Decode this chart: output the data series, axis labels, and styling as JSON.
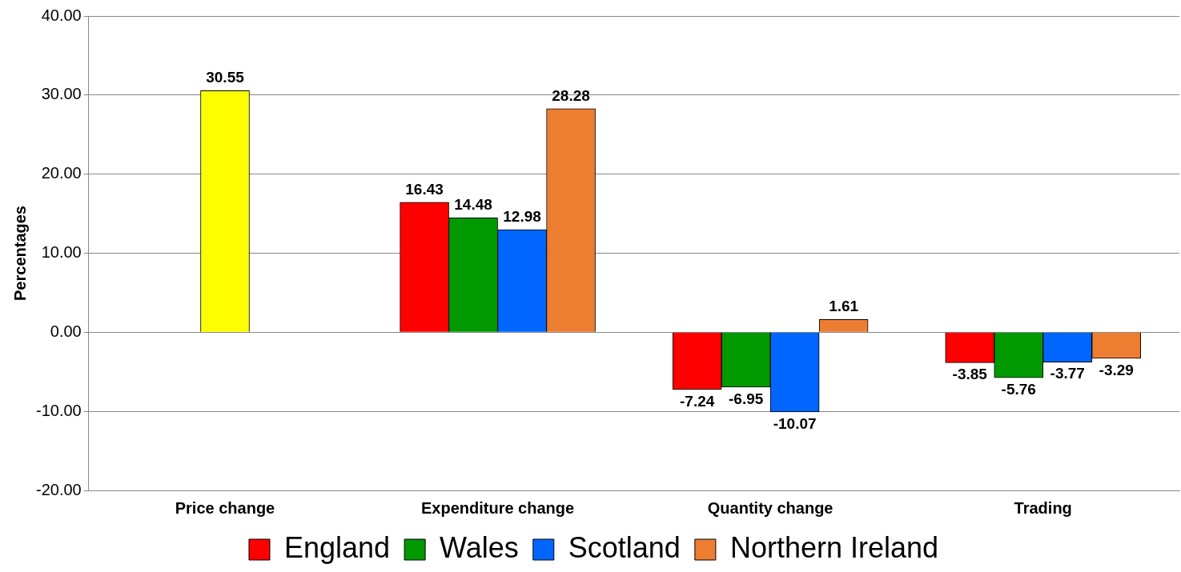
{
  "chart_data": {
    "type": "bar",
    "ylabel": "Percentages",
    "categories": [
      "Price change",
      "Expenditure change",
      "Quantity change",
      "Trading"
    ],
    "series": [
      {
        "name": "England",
        "color": "#ff0000",
        "values": [
          null,
          16.43,
          -7.24,
          -3.85
        ]
      },
      {
        "name": "Wales",
        "color": "#009900",
        "values": [
          null,
          14.48,
          -6.95,
          -5.76
        ]
      },
      {
        "name": "Scotland",
        "color": "#0066ff",
        "values": [
          null,
          12.98,
          -10.07,
          -3.77
        ]
      },
      {
        "name": "Northern Ireland",
        "color": "#ed7d31",
        "values": [
          null,
          28.28,
          1.61,
          -3.29
        ]
      },
      {
        "color": "#ffff00",
        "values": [
          30.55,
          null,
          null,
          null
        ]
      }
    ],
    "ylim": [
      -20,
      40
    ],
    "yticks": [
      {
        "value": -20,
        "label": "-20.00"
      },
      {
        "value": -10,
        "label": "-10.00"
      },
      {
        "value": 0,
        "label": "0.00"
      },
      {
        "value": 10,
        "label": "10.00"
      },
      {
        "value": 20,
        "label": "20.00"
      },
      {
        "value": 30,
        "label": "30.00"
      },
      {
        "value": 40,
        "label": "40.00"
      }
    ],
    "grid": "y",
    "legend": "bottom",
    "data_labels": true
  }
}
